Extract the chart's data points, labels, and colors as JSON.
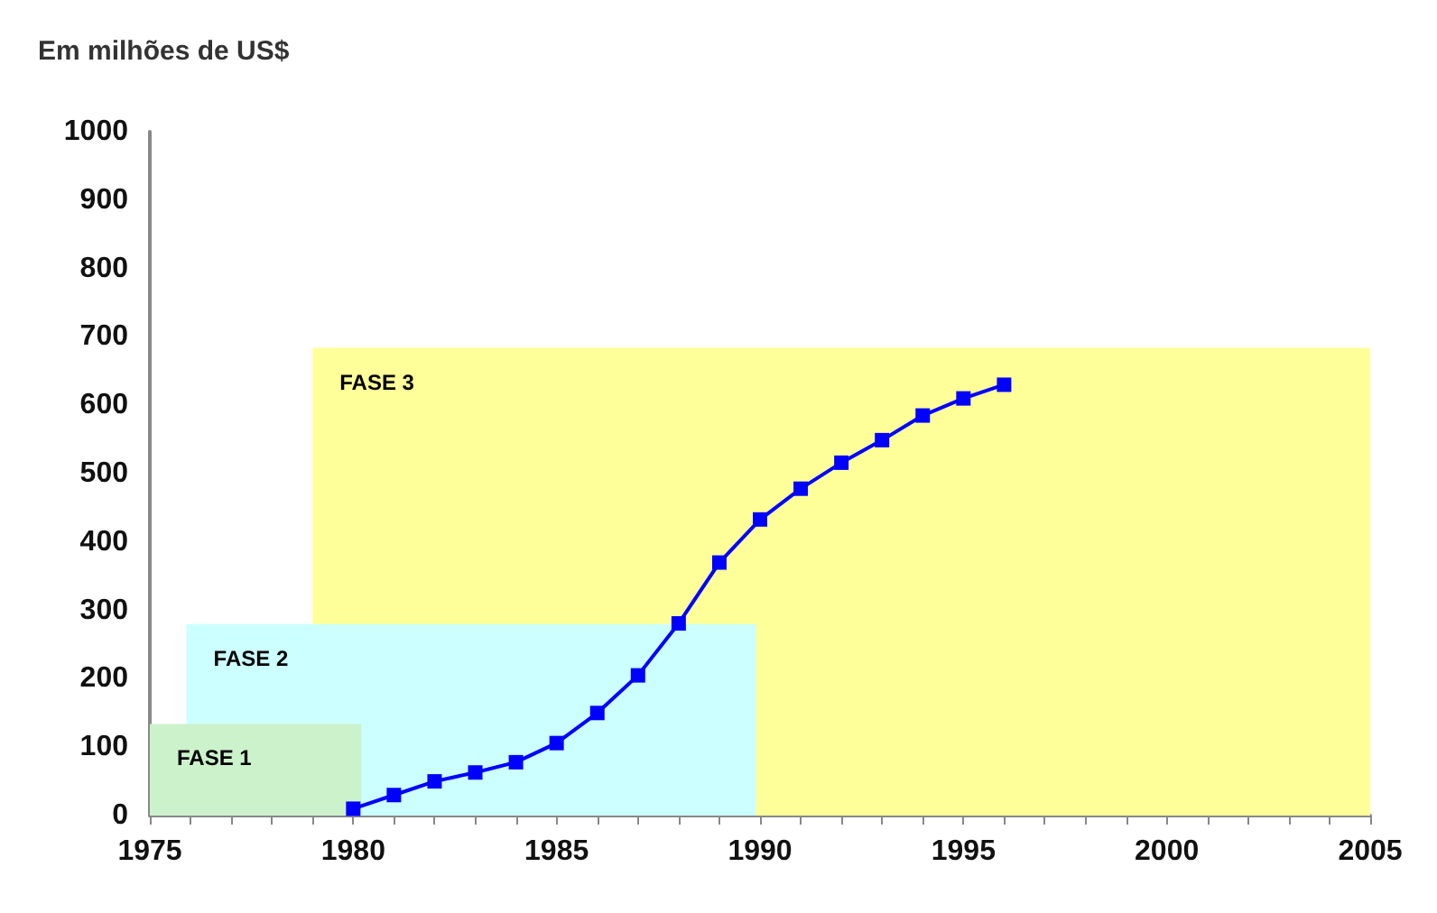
{
  "chart_data": {
    "type": "line",
    "ylabel": "Em milhões de US$",
    "xlim": [
      1975,
      2005
    ],
    "ylim": [
      0,
      1000
    ],
    "xticks": [
      1975,
      {
        "value": 1976,
        "label": null
      },
      {
        "value": 1977,
        "label": null
      },
      {
        "value": 1978,
        "label": null
      },
      {
        "value": 1979,
        "label": null
      },
      1980,
      {
        "value": 1981,
        "label": null
      },
      {
        "value": 1982,
        "label": null
      },
      {
        "value": 1983,
        "label": null
      },
      {
        "value": 1984,
        "label": null
      },
      1985,
      {
        "value": 1986,
        "label": null
      },
      {
        "value": 1987,
        "label": null
      },
      {
        "value": 1988,
        "label": null
      },
      {
        "value": 1989,
        "label": null
      },
      1990,
      {
        "value": 1991,
        "label": null
      },
      {
        "value": 1992,
        "label": null
      },
      {
        "value": 1993,
        "label": null
      },
      {
        "value": 1994,
        "label": null
      },
      1995,
      {
        "value": 1996,
        "label": null
      },
      {
        "value": 1997,
        "label": null
      },
      {
        "value": 1998,
        "label": null
      },
      {
        "value": 1999,
        "label": null
      },
      2000,
      {
        "value": 2001,
        "label": null
      },
      {
        "value": 2002,
        "label": null
      },
      {
        "value": 2003,
        "label": null
      },
      {
        "value": 2004,
        "label": null
      },
      2005
    ],
    "yticks": [
      0,
      100,
      200,
      300,
      400,
      500,
      600,
      700,
      800,
      900,
      1000
    ],
    "grid": false,
    "legend": false,
    "series": [
      {
        "type": "area",
        "name": "FASE 3",
        "color": "#ffff99",
        "x": [
          1979,
          2005
        ],
        "values": [
          684,
          684
        ]
      },
      {
        "type": "area",
        "name": "FASE 2",
        "color": "#ccffff",
        "x": [
          1975.9,
          1989.9
        ],
        "values": [
          280,
          280
        ]
      },
      {
        "type": "area",
        "name": "FASE 1",
        "color": "#ccf2cc",
        "x": [
          1975,
          1980.2
        ],
        "values": [
          134,
          134
        ]
      },
      {
        "color": "#0000ff",
        "marker": "square",
        "line_style": "solid",
        "x": [
          1980,
          1981,
          1982,
          1983,
          1984,
          1985,
          1986,
          1987,
          1988,
          1989,
          1990,
          1991,
          1992,
          1993,
          1994,
          1995,
          1996
        ],
        "values": [
          10,
          30,
          50,
          63,
          78,
          106,
          150,
          205,
          281,
          370,
          433,
          478,
          516,
          549,
          585,
          610,
          630
        ]
      }
    ]
  }
}
